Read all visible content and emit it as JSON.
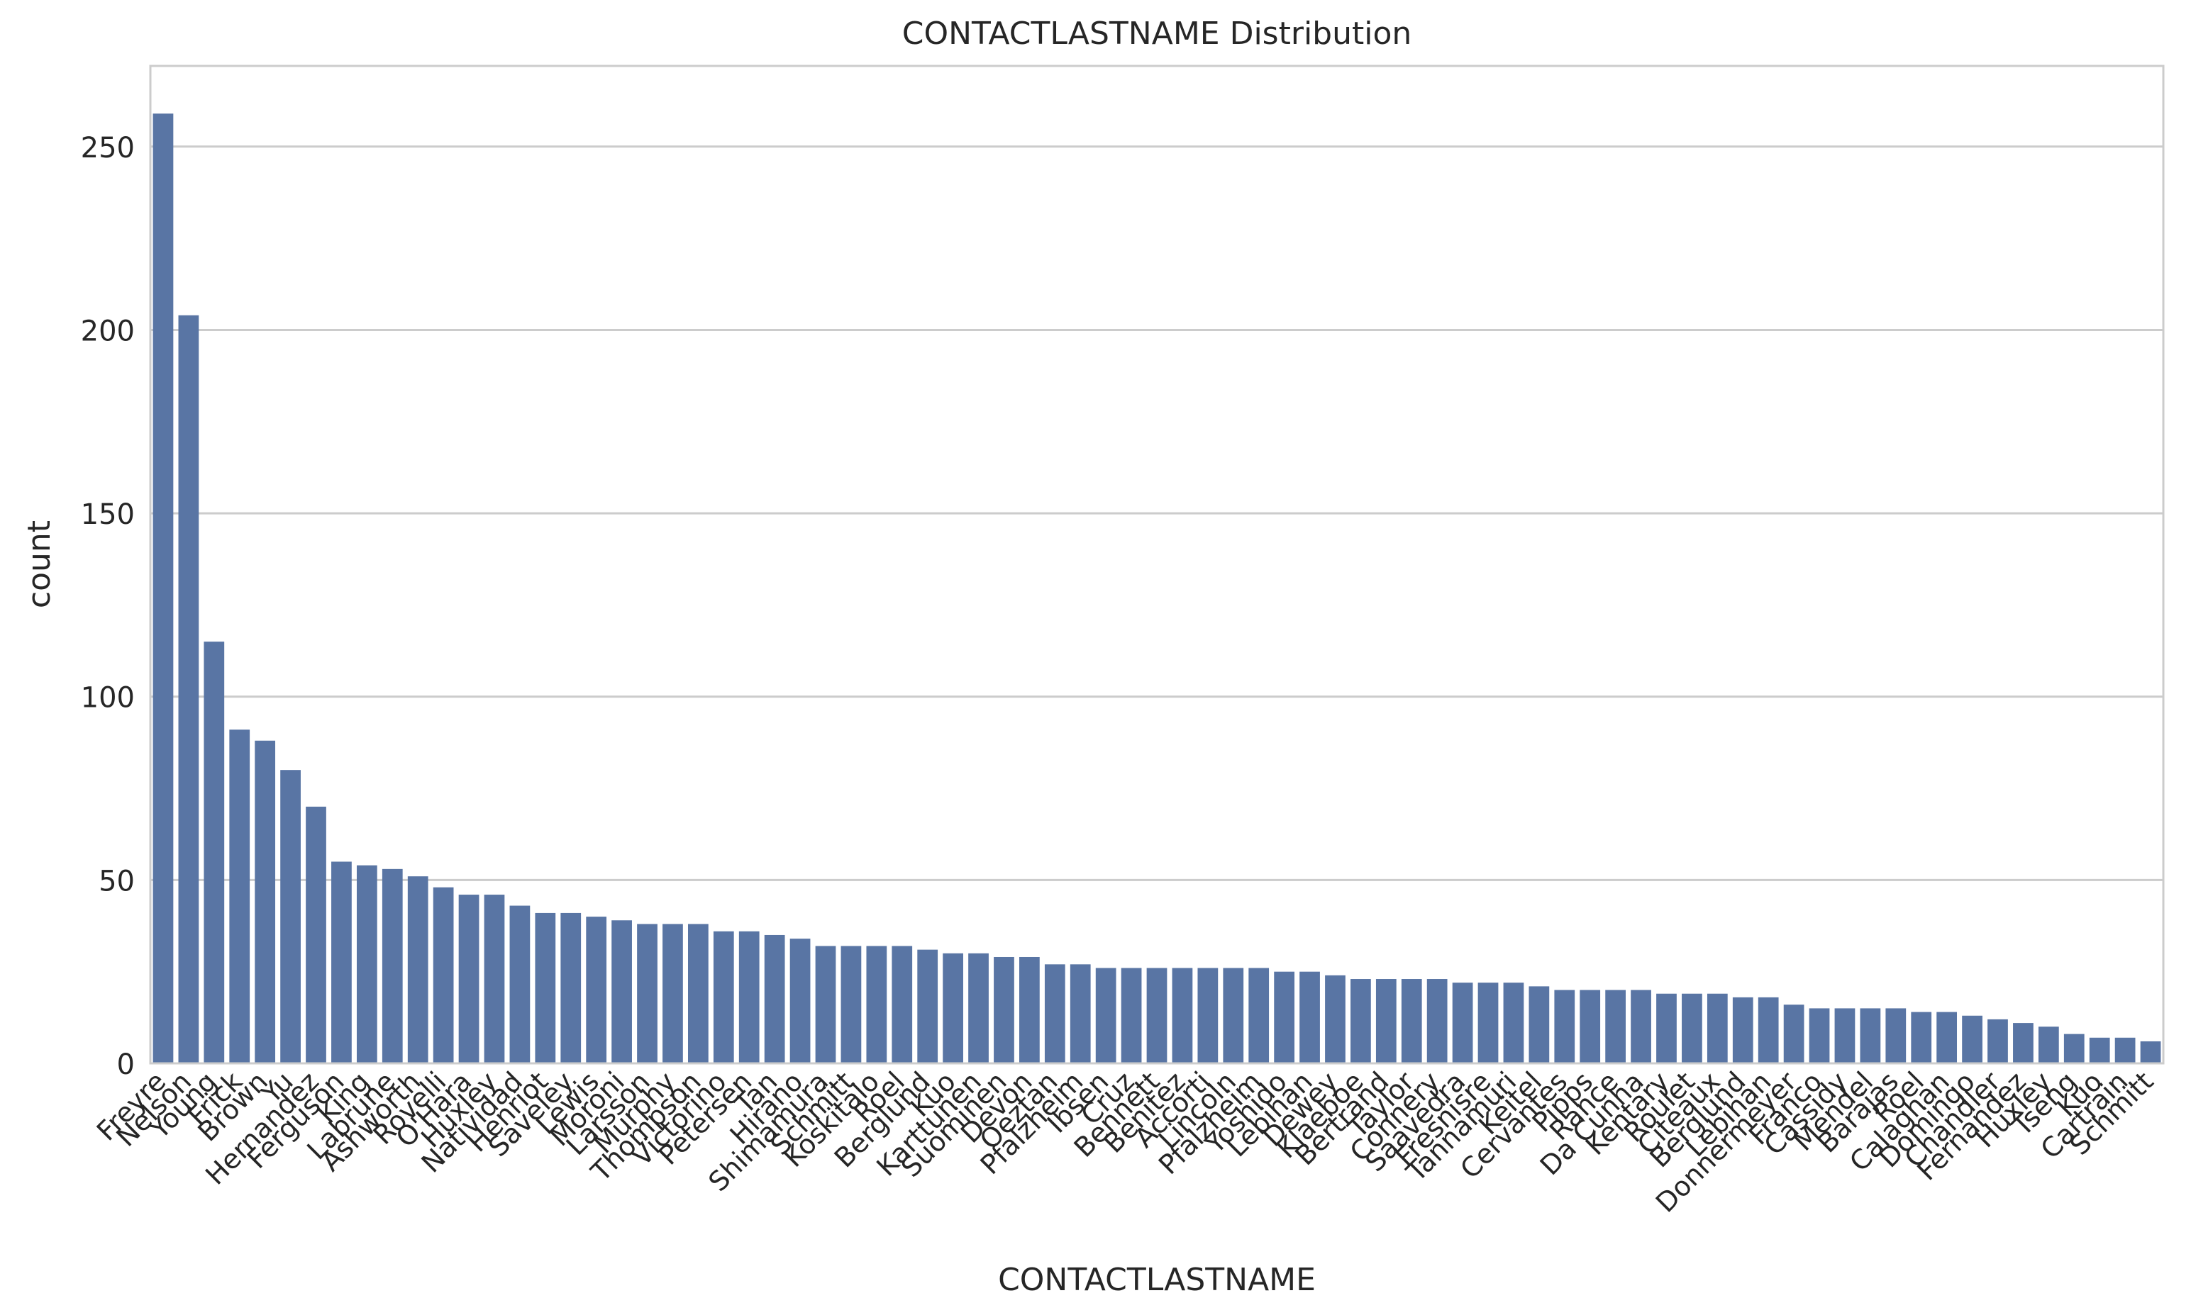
{
  "chart_data": {
    "type": "bar",
    "title": "CONTACTLASTNAME Distribution",
    "xlabel": "CONTACTLASTNAME",
    "ylabel": "count",
    "ylim": [
      0,
      272
    ],
    "yticks": [
      0,
      50,
      100,
      150,
      200,
      250
    ],
    "grid": "horizontal",
    "bar_color": "#5975a4",
    "categories": [
      "Freyre",
      "Nelson",
      "Young",
      "Frick",
      "Brown",
      "Yu",
      "Hernandez",
      "Ferguson",
      "King",
      "Labrune",
      "Ashworth",
      "Rovelli",
      "O'Hara",
      "Huxley",
      "Natividad",
      "Henriot",
      "Saveley",
      "Lewis",
      "Moroni",
      "Larsson",
      "Murphy",
      "Thompson",
      "Victorino",
      "Petersen",
      "Tan",
      "Hirano",
      "Shimamura",
      "Schmitt",
      "Koskitalo",
      "Roel",
      "Berglund",
      "Kuo",
      "Karttunen",
      "Suominen",
      "Devon",
      "Oeztan",
      "Pfalzheim",
      "Ibsen",
      "Cruz",
      "Bennett",
      "Benitez",
      "Accorti",
      "Lincoln",
      "Pfalzheim",
      "Yoshido",
      "Lebihan",
      "Dewey",
      "Klaeboe",
      "Bertrand",
      "Taylor",
      "Connery",
      "Saavedra",
      "Fresnisre",
      "Tannamuri",
      "Keitel",
      "Cervantes",
      "Pipps",
      "Rance",
      "Da Cunha",
      "Kentary",
      "Roulet",
      "Citeaux",
      "Berglund",
      "Lebihan",
      "Donnermeyer",
      "Franco",
      "Cassidy",
      "Mendel",
      "Barajas",
      "Roel",
      "Calaghan",
      "Domingo",
      "Chandler",
      "Fernandez",
      "Huxley",
      "Tseng",
      "Kuo",
      "Cartrain",
      "Schmitt"
    ],
    "values": [
      259,
      204,
      115,
      91,
      88,
      80,
      70,
      55,
      54,
      53,
      51,
      48,
      46,
      46,
      43,
      41,
      41,
      40,
      39,
      38,
      38,
      38,
      36,
      36,
      35,
      34,
      32,
      32,
      32,
      32,
      31,
      30,
      30,
      29,
      29,
      27,
      27,
      26,
      26,
      26,
      26,
      26,
      26,
      26,
      25,
      25,
      24,
      23,
      23,
      23,
      23,
      22,
      22,
      22,
      21,
      20,
      20,
      20,
      20,
      19,
      19,
      19,
      18,
      18,
      16,
      15,
      15,
      15,
      15,
      14,
      14,
      13,
      12,
      11,
      10,
      8,
      7,
      7,
      6
    ]
  }
}
